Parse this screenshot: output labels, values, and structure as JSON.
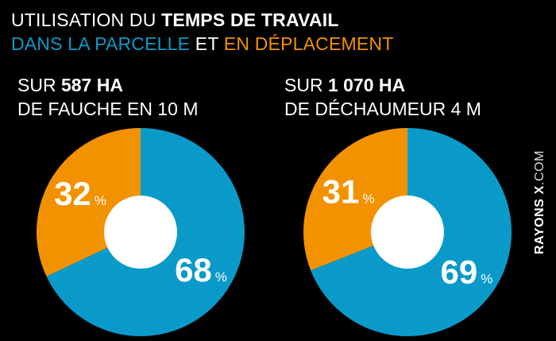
{
  "header": {
    "line1_prefix": "UTILISATION DU ",
    "line1_bold": "TEMPS DE TRAVAIL",
    "line2_blue": "DANS LA PARCELLE",
    "line2_mid": " ET ",
    "line2_orange": "EN DÉPLACEMENT"
  },
  "colors": {
    "field": "#0a9ac9",
    "travel": "#f39200",
    "background": "#000000",
    "center": "#ffffff"
  },
  "chart_data": [
    {
      "type": "pie",
      "subtitle_prefix": "SUR ",
      "subtitle_bold": "587 HA",
      "subtitle_line2": "DE FAUCHE EN 10 M",
      "slices": [
        {
          "key": "field",
          "value": 68,
          "label": "68",
          "unit": "%"
        },
        {
          "key": "travel",
          "value": 32,
          "label": "32",
          "unit": "%"
        }
      ]
    },
    {
      "type": "pie",
      "subtitle_prefix": "SUR ",
      "subtitle_bold": "1 070 HA",
      "subtitle_line2": "DE DÉCHAUMEUR 4 M",
      "slices": [
        {
          "key": "field",
          "value": 69,
          "label": "69",
          "unit": "%"
        },
        {
          "key": "travel",
          "value": 31,
          "label": "31",
          "unit": "%"
        }
      ]
    }
  ],
  "source": {
    "bold": "RAYONS X",
    "rest": ".COM"
  }
}
